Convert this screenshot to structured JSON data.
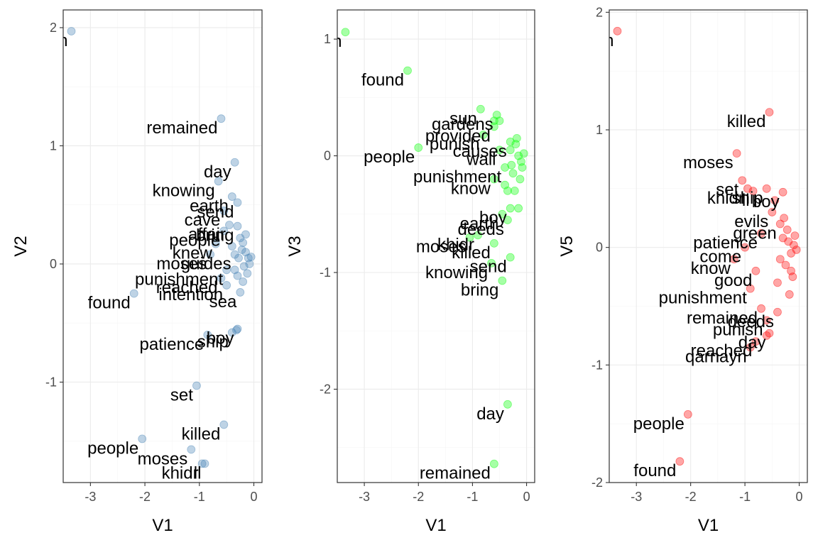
{
  "chart_data": [
    {
      "type": "scatter",
      "xlabel": "V1",
      "ylabel": "V2",
      "xlim": [
        -3.5,
        0.15
      ],
      "ylim": [
        -1.85,
        2.15
      ],
      "x_ticks": [
        -3,
        -2,
        -1,
        0
      ],
      "y_ticks": [
        -1,
        0,
        1,
        2
      ],
      "grid": true,
      "legend": "none",
      "point_color": "#4682b4",
      "labeled_points": [
        {
          "label": "n",
          "x": -3.35,
          "y": 1.97
        },
        {
          "label": "remained",
          "x": -0.6,
          "y": 1.23
        },
        {
          "label": "day",
          "x": -0.35,
          "y": 0.86
        },
        {
          "label": "knowing",
          "x": -0.65,
          "y": 0.7
        },
        {
          "label": "earth",
          "x": -0.4,
          "y": 0.57
        },
        {
          "label": "send",
          "x": -0.3,
          "y": 0.52
        },
        {
          "label": "cave",
          "x": -0.55,
          "y": 0.45
        },
        {
          "label": "affair",
          "x": -0.45,
          "y": 0.33
        },
        {
          "label": "bring",
          "x": -0.3,
          "y": 0.32
        },
        {
          "label": "people",
          "x": -0.55,
          "y": 0.28
        },
        {
          "label": "knew",
          "x": -0.7,
          "y": 0.17
        },
        {
          "label": "moses",
          "x": -0.8,
          "y": 0.08
        },
        {
          "label": "found",
          "x": -2.2,
          "y": -0.25
        },
        {
          "label": "guides",
          "x": -0.35,
          "y": 0.08
        },
        {
          "label": "punishment",
          "x": -0.5,
          "y": -0.05
        },
        {
          "label": "reached",
          "x": -0.6,
          "y": -0.12
        },
        {
          "label": "intention",
          "x": -0.5,
          "y": -0.18
        },
        {
          "label": "sea",
          "x": -0.25,
          "y": -0.24
        },
        {
          "label": "patience",
          "x": -0.85,
          "y": -0.6
        },
        {
          "label": "boy",
          "x": -0.3,
          "y": -0.55
        },
        {
          "label": "ship",
          "x": -0.4,
          "y": -0.58
        },
        {
          "label": "set",
          "x": -1.05,
          "y": -1.03
        },
        {
          "label": "killed",
          "x": -0.55,
          "y": -1.36
        },
        {
          "label": "people",
          "x": -2.05,
          "y": -1.48
        },
        {
          "label": "moses",
          "x": -1.15,
          "y": -1.57
        },
        {
          "label": "khidr",
          "x": -0.95,
          "y": -1.69
        },
        {
          "label": "ll",
          "x": -0.9,
          "y": -1.69
        }
      ],
      "extra_points": [
        {
          "x": -0.2,
          "y": 0.18
        },
        {
          "x": -0.15,
          "y": 0.1
        },
        {
          "x": -0.1,
          "y": 0.05
        },
        {
          "x": -0.18,
          "y": -0.02
        },
        {
          "x": -0.25,
          "y": 0.22
        },
        {
          "x": -0.12,
          "y": -0.08
        },
        {
          "x": -0.3,
          "y": -0.1
        },
        {
          "x": -0.08,
          "y": 0.0
        },
        {
          "x": -0.22,
          "y": 0.12
        },
        {
          "x": -0.35,
          "y": -0.05
        },
        {
          "x": -0.28,
          "y": 0.05
        },
        {
          "x": -0.15,
          "y": 0.25
        },
        {
          "x": -0.05,
          "y": 0.06
        },
        {
          "x": -0.4,
          "y": 0.15
        },
        {
          "x": -0.2,
          "y": -0.15
        },
        {
          "x": -0.32,
          "y": -0.56
        }
      ]
    },
    {
      "type": "scatter",
      "xlabel": "V1",
      "ylabel": "V3",
      "xlim": [
        -3.5,
        0.15
      ],
      "ylim": [
        -2.8,
        1.25
      ],
      "x_ticks": [
        -3,
        -2,
        -1,
        0
      ],
      "y_ticks": [
        -2,
        -1,
        0,
        1
      ],
      "grid": true,
      "legend": "none",
      "point_color": "#00ff00",
      "labeled_points": [
        {
          "label": "n",
          "x": -3.35,
          "y": 1.06
        },
        {
          "label": "found",
          "x": -2.2,
          "y": 0.73
        },
        {
          "label": "sun",
          "x": -0.85,
          "y": 0.4
        },
        {
          "label": "gardens",
          "x": -0.55,
          "y": 0.35
        },
        {
          "label": "people",
          "x": -2.0,
          "y": 0.07
        },
        {
          "label": "provided",
          "x": -0.6,
          "y": 0.25
        },
        {
          "label": "punish",
          "x": -0.8,
          "y": 0.18
        },
        {
          "label": "causes",
          "x": -0.3,
          "y": 0.12
        },
        {
          "label": "wall",
          "x": -0.5,
          "y": 0.05
        },
        {
          "label": "punishment",
          "x": -0.4,
          "y": -0.1
        },
        {
          "label": "know",
          "x": -0.6,
          "y": -0.2
        },
        {
          "label": "boy",
          "x": -0.3,
          "y": -0.45
        },
        {
          "label": "earth",
          "x": -0.45,
          "y": -0.5
        },
        {
          "label": "deeds",
          "x": -0.35,
          "y": -0.55
        },
        {
          "label": "moses",
          "x": -1.05,
          "y": -0.7
        },
        {
          "label": "khidr",
          "x": -0.9,
          "y": -0.68
        },
        {
          "label": "killed",
          "x": -0.6,
          "y": -0.75
        },
        {
          "label": "send",
          "x": -0.3,
          "y": -0.87
        },
        {
          "label": "knowing",
          "x": -0.65,
          "y": -0.92
        },
        {
          "label": "bring",
          "x": -0.45,
          "y": -1.07
        },
        {
          "label": "day",
          "x": -0.35,
          "y": -2.13
        },
        {
          "label": "remained",
          "x": -0.6,
          "y": -2.64
        }
      ],
      "extra_points": [
        {
          "x": -0.2,
          "y": 0.1
        },
        {
          "x": -0.15,
          "y": 0.0
        },
        {
          "x": -0.1,
          "y": -0.05
        },
        {
          "x": -0.25,
          "y": -0.15
        },
        {
          "x": -0.3,
          "y": 0.05
        },
        {
          "x": -0.12,
          "y": -0.2
        },
        {
          "x": -0.05,
          "y": 0.02
        },
        {
          "x": -0.4,
          "y": -0.25
        },
        {
          "x": -0.22,
          "y": -0.3
        },
        {
          "x": -0.18,
          "y": 0.15
        },
        {
          "x": -0.08,
          "y": -0.1
        },
        {
          "x": -0.35,
          "y": -0.3
        },
        {
          "x": -0.5,
          "y": 0.3
        },
        {
          "x": -0.15,
          "y": -0.45
        },
        {
          "x": -0.28,
          "y": -0.08
        },
        {
          "x": -0.6,
          "y": 0.3
        }
      ]
    },
    {
      "type": "scatter",
      "xlabel": "V1",
      "ylabel": "V5",
      "xlim": [
        -3.5,
        0.15
      ],
      "ylim": [
        -2.0,
        2.02
      ],
      "x_ticks": [
        -3,
        -2,
        -1,
        0
      ],
      "y_ticks": [
        -2,
        -1,
        0,
        1,
        2
      ],
      "grid": true,
      "legend": "none",
      "point_color": "#ff0000",
      "labeled_points": [
        {
          "label": "n",
          "x": -3.35,
          "y": 1.84
        },
        {
          "label": "killed",
          "x": -0.55,
          "y": 1.15
        },
        {
          "label": "moses",
          "x": -1.15,
          "y": 0.8
        },
        {
          "label": "set",
          "x": -1.05,
          "y": 0.57
        },
        {
          "label": "khidr",
          "x": -0.95,
          "y": 0.5
        },
        {
          "label": "boy",
          "x": -0.3,
          "y": 0.47
        },
        {
          "label": "ll",
          "x": -0.85,
          "y": 0.48
        },
        {
          "label": "ship",
          "x": -0.6,
          "y": 0.5
        },
        {
          "label": "evils",
          "x": -0.5,
          "y": 0.3
        },
        {
          "label": "green",
          "x": -0.35,
          "y": 0.2
        },
        {
          "label": "patience",
          "x": -0.7,
          "y": 0.12
        },
        {
          "label": "come",
          "x": -1.0,
          "y": 0.0
        },
        {
          "label": "know",
          "x": -1.2,
          "y": -0.1
        },
        {
          "label": "good",
          "x": -0.8,
          "y": -0.2
        },
        {
          "label": "punishment",
          "x": -0.9,
          "y": -0.35
        },
        {
          "label": "remained",
          "x": -0.7,
          "y": -0.52
        },
        {
          "label": "deeds",
          "x": -0.4,
          "y": -0.55
        },
        {
          "label": "punish",
          "x": -0.6,
          "y": -0.62
        },
        {
          "label": "day",
          "x": -0.55,
          "y": -0.73
        },
        {
          "label": "reached",
          "x": -0.8,
          "y": -0.8
        },
        {
          "label": "qarnayn",
          "x": -0.9,
          "y": -0.85
        },
        {
          "label": "people",
          "x": -2.05,
          "y": -1.42
        },
        {
          "label": "found",
          "x": -2.2,
          "y": -1.82
        }
      ],
      "extra_points": [
        {
          "x": -0.2,
          "y": 0.05
        },
        {
          "x": -0.15,
          "y": -0.05
        },
        {
          "x": -0.1,
          "y": 0.02
        },
        {
          "x": -0.25,
          "y": -0.15
        },
        {
          "x": -0.3,
          "y": 0.08
        },
        {
          "x": -0.12,
          "y": -0.25
        },
        {
          "x": -0.05,
          "y": -0.02
        },
        {
          "x": -0.4,
          "y": -0.3
        },
        {
          "x": -0.22,
          "y": 0.15
        },
        {
          "x": -0.18,
          "y": -0.4
        },
        {
          "x": -0.08,
          "y": 0.1
        },
        {
          "x": -0.35,
          "y": -0.1
        },
        {
          "x": -0.45,
          "y": 0.4
        },
        {
          "x": -0.15,
          "y": -0.2
        },
        {
          "x": -0.28,
          "y": 0.25
        },
        {
          "x": -0.6,
          "y": -0.75
        }
      ]
    }
  ]
}
